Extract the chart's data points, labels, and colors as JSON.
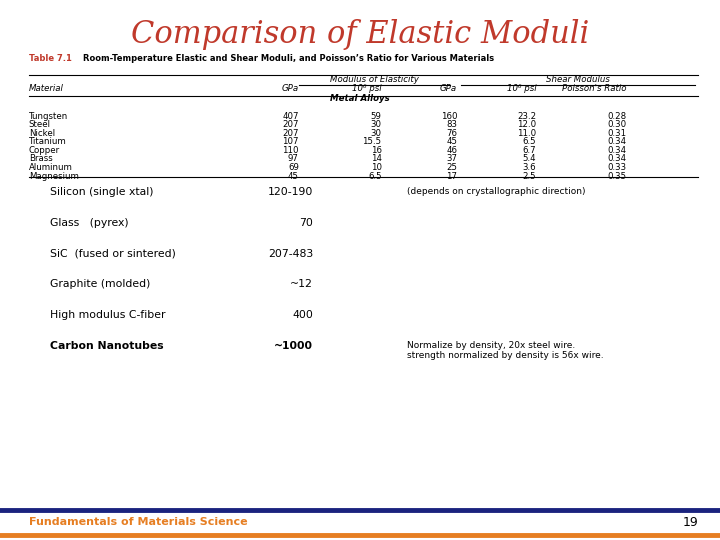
{
  "title": "Comparison of Elastic Moduli",
  "title_color": "#C0392B",
  "title_fontsize": 22,
  "table_title_label": "Table 7.1",
  "table_title_label_color": "#C0392B",
  "table_title_rest": "Room-Temperature Elastic and Shear Moduli, and Poisson’s Ratio for Various Materials",
  "col_headers_2": [
    "Material",
    "GPa",
    "10⁶ psi",
    "GPa",
    "10⁶ psi",
    "Poisson's Ratio"
  ],
  "section_header": "Metal Alloys",
  "rows": [
    [
      "Tungsten",
      "407",
      "59",
      "160",
      "23.2",
      "0.28"
    ],
    [
      "Steel",
      "207",
      "30",
      "83",
      "12.0",
      "0.30"
    ],
    [
      "Nickel",
      "207",
      "30",
      "76",
      "11.0",
      "0.31"
    ],
    [
      "Titanium",
      "107",
      "15.5",
      "45",
      "6.5",
      "0.34"
    ],
    [
      "Copper",
      "110",
      "16",
      "46",
      "6.7",
      "0.34"
    ],
    [
      "Brass",
      "97",
      "14",
      "37",
      "5.4",
      "0.34"
    ],
    [
      "Aluminum",
      "69",
      "10",
      "25",
      "3.6",
      "0.33"
    ],
    [
      "Magnesium",
      "45",
      "6.5",
      "17",
      "2.5",
      "0.35"
    ]
  ],
  "extra_lines": [
    [
      "Silicon (single xtal)",
      "120-190",
      "(depends on crystallographic direction)",
      false
    ],
    [
      "Glass   (pyrex)",
      "70",
      "",
      false
    ],
    [
      "SiC  (fused or sintered)",
      "207-483",
      "",
      false
    ],
    [
      "Graphite (molded)",
      "~12",
      "",
      false
    ],
    [
      "High modulus C-fiber",
      "400",
      "",
      false
    ],
    [
      "Carbon Nanotubes",
      "~1000",
      "Normalize by density, 20x steel wire.\nstrength normalized by density is 56x wire.",
      true
    ]
  ],
  "footer_text": "Fundamentals of Materials Science",
  "footer_color": "#E67E22",
  "footer_page": "19",
  "bg_color": "#FFFFFF",
  "border_top_color": "#1A237E",
  "border_bottom_color": "#E67E22"
}
